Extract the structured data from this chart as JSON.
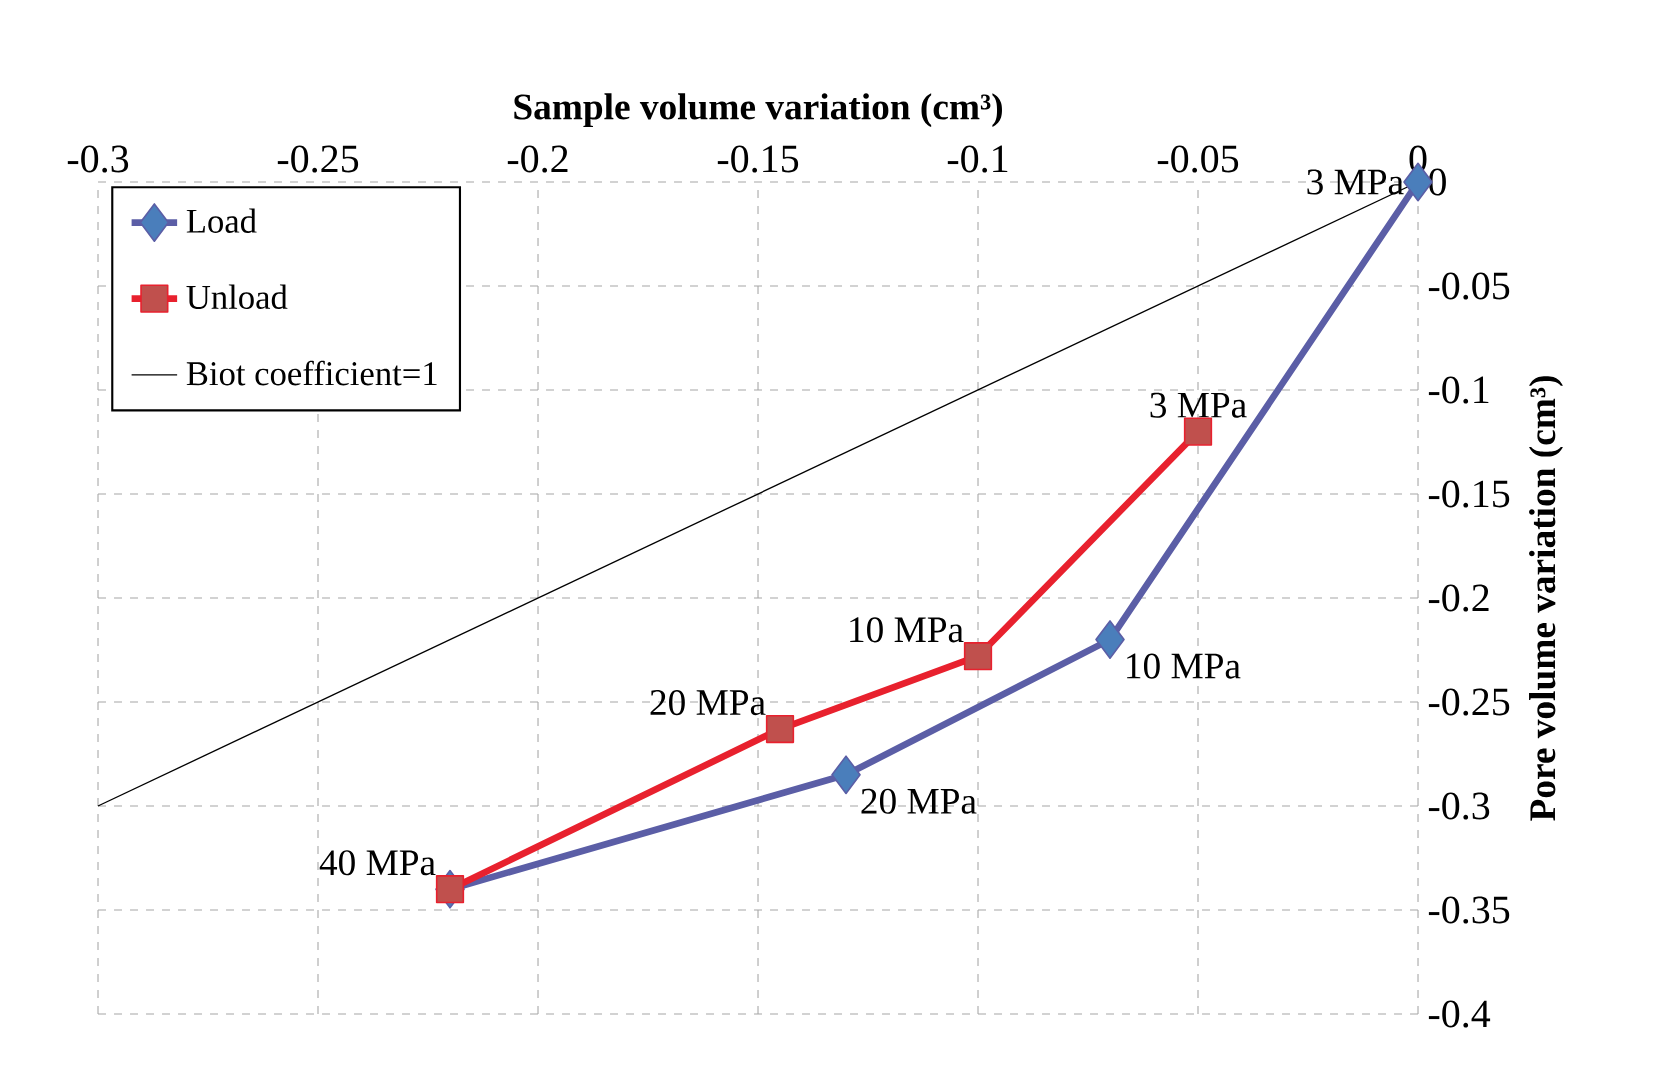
{
  "chart_data": {
    "type": "line",
    "xlabel": "Sample volume variation (cm³)",
    "ylabel": "Pore volume variation (cm³)",
    "xlim": [
      -0.3,
      0
    ],
    "ylim": [
      -0.4,
      0
    ],
    "xticks": [
      -0.3,
      -0.25,
      -0.2,
      -0.15,
      -0.1,
      -0.05,
      0
    ],
    "yticks": [
      -0.4,
      -0.35,
      -0.3,
      -0.25,
      -0.2,
      -0.15,
      -0.1,
      -0.05,
      0
    ],
    "grid": true,
    "legend": "top left",
    "series": [
      {
        "name": "Load",
        "color": "#5b5ea6",
        "marker": "diamond",
        "x": [
          0,
          -0.07,
          -0.13,
          -0.22
        ],
        "values": [
          0,
          -0.22,
          -0.285,
          -0.34
        ]
      },
      {
        "name": "Unload",
        "color": "#e8212e",
        "marker": "square",
        "x": [
          -0.05,
          -0.1,
          -0.145,
          -0.22
        ],
        "values": [
          -0.12,
          -0.228,
          -0.263,
          -0.34
        ]
      },
      {
        "name": "Biot coefficient=1",
        "color": "#000000",
        "marker": "none",
        "x": [
          -0.3,
          0
        ],
        "values": [
          -0.3,
          0
        ]
      }
    ],
    "annotations": [
      {
        "text": "3 MPa",
        "x": 0,
        "y": 0
      },
      {
        "text": "10 MPa",
        "x": -0.07,
        "y": -0.22
      },
      {
        "text": "20 MPa",
        "x": -0.13,
        "y": -0.285
      },
      {
        "text": "40 MPa",
        "x": -0.22,
        "y": -0.34
      },
      {
        "text": "3 MPa",
        "x": -0.05,
        "y": -0.12
      },
      {
        "text": "10 MPa",
        "x": -0.1,
        "y": -0.228
      },
      {
        "text": "20 MPa",
        "x": -0.145,
        "y": -0.263
      }
    ]
  }
}
